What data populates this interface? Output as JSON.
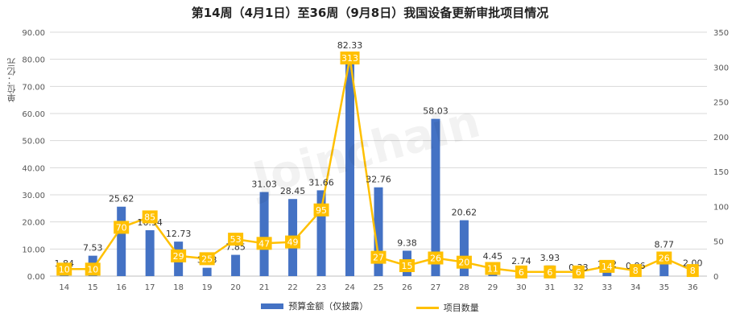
{
  "title": "第14周（4月1日）至36周（9月8日）我国设备更新审批项目情况",
  "unit_label": "单位：亿元",
  "watermark": "Joinchain",
  "legend": {
    "bar_label": "预算金额（仅披露）",
    "line_label": "项目数量"
  },
  "colors": {
    "bar": "#4472C4",
    "line": "#FFC000",
    "grid": "#D9D9D9"
  },
  "chart_data": {
    "type": "bar",
    "title": "第14周（4月1日）至36周（9月8日）我国设备更新审批项目情况",
    "categories": [
      "14",
      "15",
      "16",
      "17",
      "18",
      "19",
      "20",
      "21",
      "22",
      "23",
      "24",
      "25",
      "26",
      "27",
      "28",
      "29",
      "30",
      "31",
      "32",
      "33",
      "34",
      "35",
      "36"
    ],
    "series": [
      {
        "name": "预算金额（仅披露）",
        "type": "bar",
        "axis": "left",
        "values": [
          1.84,
          7.53,
          25.62,
          16.94,
          12.73,
          3.08,
          7.85,
          31.03,
          28.45,
          31.66,
          82.33,
          32.76,
          9.38,
          58.03,
          20.62,
          4.45,
          2.74,
          3.93,
          0.33,
          1.42,
          0.86,
          8.77,
          2.0
        ],
        "labels": [
          "1.84",
          "7.53",
          "25.62",
          "16.94",
          "12.73",
          "3.08",
          "7.85",
          "31.03",
          "28.45",
          "31.66",
          "82.33",
          "32.76",
          "9.38",
          "58.03",
          "20.62",
          "4.45",
          "2.74",
          "3.93",
          "0.33",
          "1.42",
          "0.86",
          "8.77",
          "2.00"
        ]
      },
      {
        "name": "项目数量",
        "type": "line",
        "axis": "right",
        "values": [
          10,
          10,
          70,
          85,
          29,
          25,
          53,
          47,
          49,
          95,
          313,
          27,
          15,
          26,
          20,
          11,
          6,
          6,
          6,
          14,
          8,
          26,
          8
        ]
      }
    ],
    "y_left": {
      "min": 0,
      "max": 90,
      "step": 10,
      "ticks": [
        "0.00",
        "10.00",
        "20.00",
        "30.00",
        "40.00",
        "50.00",
        "60.00",
        "70.00",
        "80.00",
        "90.00"
      ]
    },
    "y_right": {
      "min": 0,
      "max": 350,
      "step": 50,
      "ticks": [
        "0",
        "50",
        "100",
        "150",
        "200",
        "250",
        "300",
        "350"
      ]
    },
    "grid": true,
    "legend_position": "bottom"
  }
}
